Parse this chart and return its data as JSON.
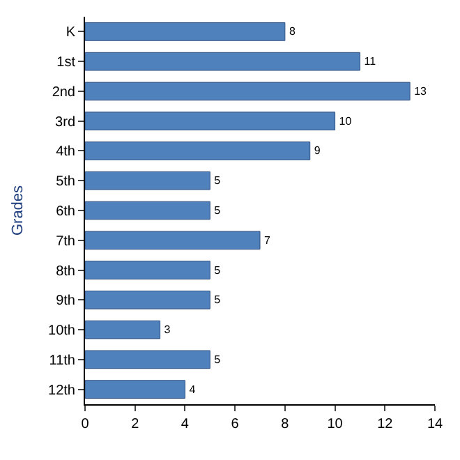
{
  "chart_data": {
    "type": "bar",
    "orientation": "horizontal",
    "ylabel": "Grades",
    "categories": [
      "K",
      "1st",
      "2nd",
      "3rd",
      "4th",
      "5th",
      "6th",
      "7th",
      "8th",
      "9th",
      "10th",
      "11th",
      "12th"
    ],
    "values": [
      8,
      11,
      13,
      10,
      9,
      5,
      5,
      7,
      5,
      5,
      3,
      5,
      4
    ],
    "color": "#4f81bd",
    "xlim": [
      0,
      14
    ],
    "xticks": [
      0,
      2,
      4,
      6,
      8,
      10,
      12,
      14
    ],
    "data_labels": true
  }
}
